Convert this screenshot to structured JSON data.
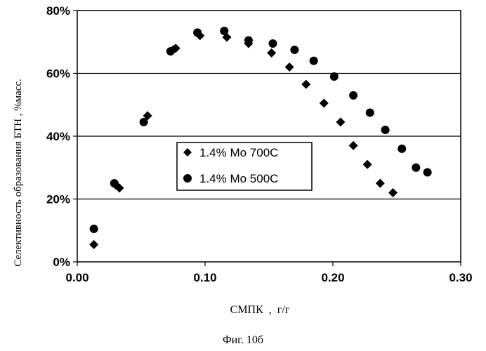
{
  "chart_data": {
    "type": "scatter",
    "title": "",
    "xlabel": "СМПК  ,  г/г",
    "ylabel": "Селективность образования БТН , %масс.",
    "caption": "Фиг. 10б",
    "xlim": [
      0.0,
      0.3
    ],
    "ylim": [
      0,
      80
    ],
    "x_ticks": [
      0.0,
      0.1,
      0.2,
      0.3
    ],
    "x_tick_labels": [
      "0.00",
      "0.10",
      "0.20",
      "0.30"
    ],
    "y_ticks": [
      0,
      20,
      40,
      60,
      80
    ],
    "y_tick_labels": [
      "0%",
      "20%",
      "40%",
      "60%",
      "80%"
    ],
    "grid": "horizontal",
    "legend_position": "center",
    "series": [
      {
        "name": "1.4% Mo 700C",
        "marker": "diamond",
        "color": "#000000",
        "points": [
          [
            0.013,
            5.5
          ],
          [
            0.03,
            24.5
          ],
          [
            0.033,
            23.5
          ],
          [
            0.055,
            46.5
          ],
          [
            0.075,
            67.5
          ],
          [
            0.077,
            68.0
          ],
          [
            0.096,
            72.0
          ],
          [
            0.117,
            71.5
          ],
          [
            0.134,
            69.5
          ],
          [
            0.152,
            66.5
          ],
          [
            0.166,
            62.0
          ],
          [
            0.179,
            56.5
          ],
          [
            0.193,
            50.5
          ],
          [
            0.206,
            44.5
          ],
          [
            0.216,
            37.0
          ],
          [
            0.227,
            31.0
          ],
          [
            0.237,
            25.0
          ],
          [
            0.247,
            22.0
          ]
        ]
      },
      {
        "name": "1.4% Mo 500C",
        "marker": "circle",
        "color": "#000000",
        "points": [
          [
            0.013,
            10.5
          ],
          [
            0.029,
            25.0
          ],
          [
            0.052,
            44.5
          ],
          [
            0.073,
            67.0
          ],
          [
            0.094,
            73.0
          ],
          [
            0.115,
            73.5
          ],
          [
            0.134,
            70.5
          ],
          [
            0.153,
            69.5
          ],
          [
            0.17,
            67.5
          ],
          [
            0.185,
            64.0
          ],
          [
            0.201,
            59.0
          ],
          [
            0.216,
            53.0
          ],
          [
            0.229,
            47.5
          ],
          [
            0.241,
            42.0
          ],
          [
            0.254,
            36.0
          ],
          [
            0.265,
            30.0
          ],
          [
            0.274,
            28.5
          ]
        ]
      }
    ]
  }
}
